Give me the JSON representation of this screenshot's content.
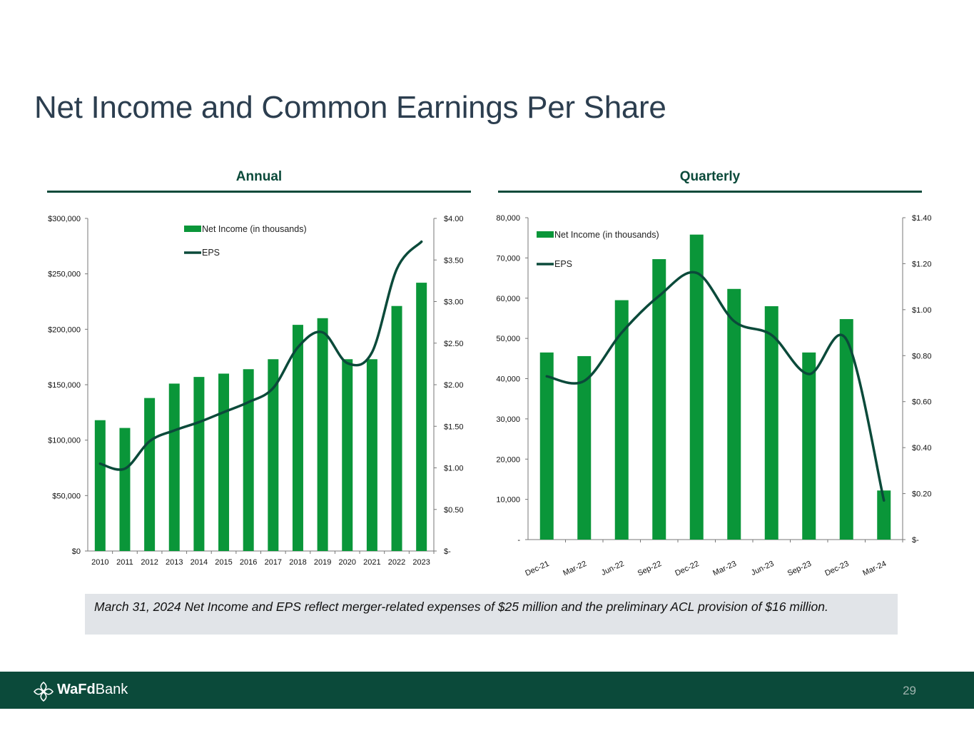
{
  "title": "Net Income and Common Earnings Per Share",
  "sections": {
    "annual": "Annual",
    "quarterly": "Quarterly"
  },
  "note": "March 31, 2024 Net Income and EPS reflect merger-related expenses of $25 million and the preliminary ACL provision of $16 million.",
  "footer": {
    "brand_bold": "WaFd",
    "brand_light": "Bank",
    "page_number": "29"
  },
  "colors": {
    "bar": "#0a9639",
    "line": "#0b4a3a",
    "brand": "#0b4a3a",
    "note_bg": "#e1e4e8"
  },
  "chart_data": [
    {
      "type": "bar+line",
      "title": "Annual",
      "categories": [
        "2010",
        "2011",
        "2012",
        "2013",
        "2014",
        "2015",
        "2016",
        "2017",
        "2018",
        "2019",
        "2020",
        "2021",
        "2022",
        "2023"
      ],
      "series": [
        {
          "name": "Net Income (in thousands)",
          "type": "bar",
          "axis": "left",
          "values": [
            118000,
            111000,
            138000,
            151000,
            157000,
            160000,
            164000,
            173000,
            204000,
            210000,
            173000,
            173000,
            221000,
            242000
          ]
        },
        {
          "name": "EPS",
          "type": "line",
          "axis": "right",
          "values": [
            1.05,
            0.99,
            1.32,
            1.45,
            1.55,
            1.67,
            1.79,
            1.96,
            2.45,
            2.63,
            2.26,
            2.39,
            3.39,
            3.72
          ]
        }
      ],
      "left_axis": {
        "ylim": [
          0,
          300000
        ],
        "ticks": [
          0,
          50000,
          100000,
          150000,
          200000,
          250000,
          300000
        ],
        "tick_labels": [
          "$0",
          "$50,000",
          "$100,000",
          "$150,000",
          "$200,000",
          "$250,000",
          "$300,000"
        ]
      },
      "right_axis": {
        "ylim": [
          0,
          4
        ],
        "ticks": [
          0,
          0.5,
          1,
          1.5,
          2,
          2.5,
          3,
          3.5,
          4
        ],
        "tick_labels": [
          "$-",
          "$0.50",
          "$1.00",
          "$1.50",
          "$2.00",
          "$2.50",
          "$3.00",
          "$3.50",
          "$4.00"
        ]
      },
      "legend": "top-center",
      "grid": false
    },
    {
      "type": "bar+line",
      "title": "Quarterly",
      "categories": [
        "Dec-21",
        "Mar-22",
        "Jun-22",
        "Sep-22",
        "Dec-22",
        "Mar-23",
        "Jun-23",
        "Sep-23",
        "Dec-23",
        "Mar-24"
      ],
      "series": [
        {
          "name": "Net Income (in thousands)",
          "type": "bar",
          "axis": "left",
          "values": [
            46500,
            45600,
            59500,
            69700,
            75800,
            62300,
            58000,
            46500,
            54800,
            12200
          ]
        },
        {
          "name": "EPS",
          "type": "line",
          "axis": "right",
          "values": [
            0.71,
            0.69,
            0.9,
            1.06,
            1.16,
            0.95,
            0.89,
            0.72,
            0.87,
            0.17
          ]
        }
      ],
      "left_axis": {
        "ylim": [
          0,
          80000
        ],
        "ticks": [
          0,
          10000,
          20000,
          30000,
          40000,
          50000,
          60000,
          70000,
          80000
        ],
        "tick_labels": [
          "-",
          "10,000",
          "20,000",
          "30,000",
          "40,000",
          "50,000",
          "60,000",
          "70,000",
          "80,000"
        ]
      },
      "right_axis": {
        "ylim": [
          0,
          1.4
        ],
        "ticks": [
          0,
          0.2,
          0.4,
          0.6,
          0.8,
          1.0,
          1.2,
          1.4
        ],
        "tick_labels": [
          "$-",
          "$0.20",
          "$0.40",
          "$0.60",
          "$0.80",
          "$1.00",
          "$1.20",
          "$1.40"
        ]
      },
      "legend": "top-left",
      "grid": false
    }
  ]
}
